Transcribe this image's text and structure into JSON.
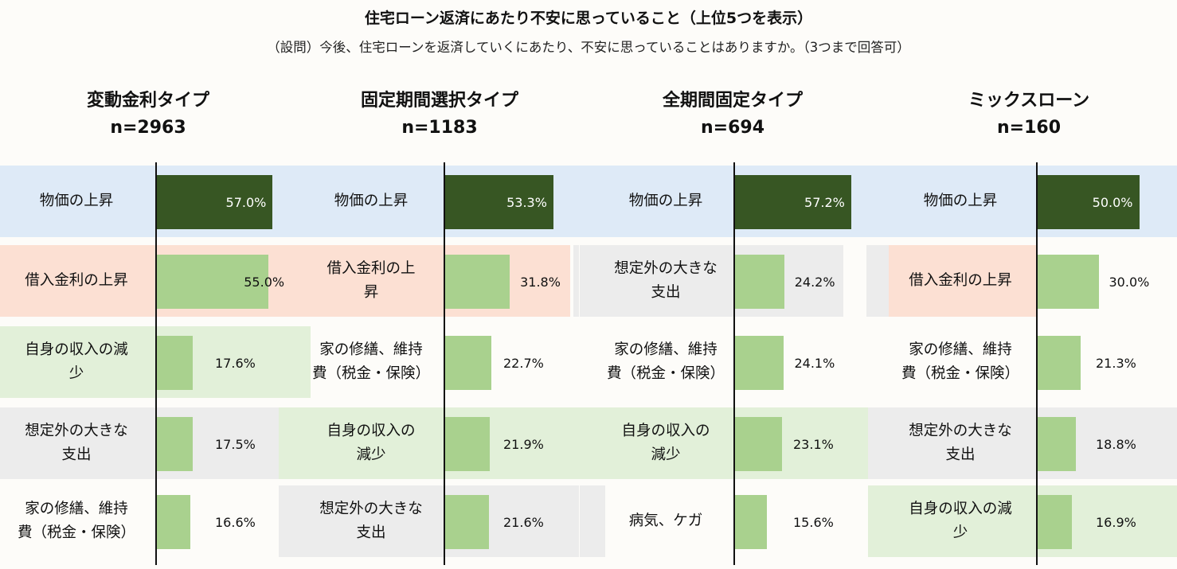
{
  "header": {
    "title": "住宅ローン返済にあたり不安に思っていること（上位5つを表示）",
    "subtitle": "（設問）今後、住宅ローンを返済していくにあたり、不安に思っていることはありますか。（3つまで回答可）"
  },
  "colors": {
    "top_bar": "#375623",
    "other_bar": "#a9d18e",
    "band_bukka": "#deeaf7",
    "band_kinri": "#fce0d3",
    "band_shunyu": "#e2f0d9",
    "band_sotei": "#ececec",
    "band_shuzen": "#fdfcf9",
    "band_byoki": "#fdfcf9"
  },
  "chart_data": [
    {
      "type": "bar",
      "title": "変動金利タイプ",
      "n": "n=2963",
      "categories": [
        "物価の上昇",
        "借入金利の上昇",
        "自身の収入の減少",
        "想定外の大きな支出",
        "家の修繕、維持費（税金・保険）"
      ],
      "labels": [
        "物価の上昇",
        "借入金利の上昇",
        "自身の収入の減\n少",
        "想定外の大きな\n支出",
        "家の修繕、維持\n費（税金・保険）"
      ],
      "keys": [
        "bukka",
        "kinri",
        "shunyu",
        "sotei",
        "shuzen"
      ],
      "values": [
        57.0,
        55.0,
        17.6,
        17.5,
        16.6
      ],
      "value_labels": [
        "57.0%",
        "55.0%",
        "17.6%",
        "17.5%",
        "16.6%"
      ]
    },
    {
      "type": "bar",
      "title": "固定期間選択タイプ",
      "n": "n=1183",
      "categories": [
        "物価の上昇",
        "借入金利の上昇",
        "家の修繕、維持費（税金・保険）",
        "自身の収入の減少",
        "想定外の大きな支出"
      ],
      "labels": [
        "物価の上昇",
        "借入金利の上\n昇",
        "家の修繕、維持\n費（税金・保険）",
        "自身の収入の\n減少",
        "想定外の大きな\n支出"
      ],
      "keys": [
        "bukka",
        "kinri",
        "shuzen",
        "shunyu",
        "sotei"
      ],
      "values": [
        53.3,
        31.8,
        22.7,
        21.9,
        21.6
      ],
      "value_labels": [
        "53.3%",
        "31.8%",
        "22.7%",
        "21.9%",
        "21.6%"
      ]
    },
    {
      "type": "bar",
      "title": "全期間固定タイプ",
      "n": "n=694",
      "categories": [
        "物価の上昇",
        "想定外の大きな支出",
        "家の修繕、維持費（税金・保険）",
        "自身の収入の減少",
        "病気、ケガ"
      ],
      "labels": [
        "物価の上昇",
        "想定外の大きな\n支出",
        "家の修繕、維持\n費（税金・保険）",
        "自身の収入の\n減少",
        "病気、ケガ"
      ],
      "keys": [
        "bukka",
        "sotei",
        "shuzen",
        "shunyu",
        "byoki"
      ],
      "values": [
        57.2,
        24.2,
        24.1,
        23.1,
        15.6
      ],
      "value_labels": [
        "57.2%",
        "24.2%",
        "24.1%",
        "23.1%",
        "15.6%"
      ]
    },
    {
      "type": "bar",
      "title": "ミックスローン",
      "n": "n=160",
      "categories": [
        "物価の上昇",
        "借入金利の上昇",
        "家の修繕、維持費（税金・保険）",
        "想定外の大きな支出",
        "自身の収入の減少"
      ],
      "labels": [
        "物価の上昇",
        "借入金利の上昇",
        "家の修繕、維持\n費（税金・保険）",
        "想定外の大きな\n支出",
        "自身の収入の減\n少"
      ],
      "keys": [
        "bukka",
        "kinri",
        "shuzen",
        "sotei",
        "shunyu"
      ],
      "values": [
        50.0,
        30.0,
        21.3,
        18.8,
        16.9
      ],
      "value_labels": [
        "50.0%",
        "30.0%",
        "21.3%",
        "18.8%",
        "16.9%"
      ]
    }
  ]
}
